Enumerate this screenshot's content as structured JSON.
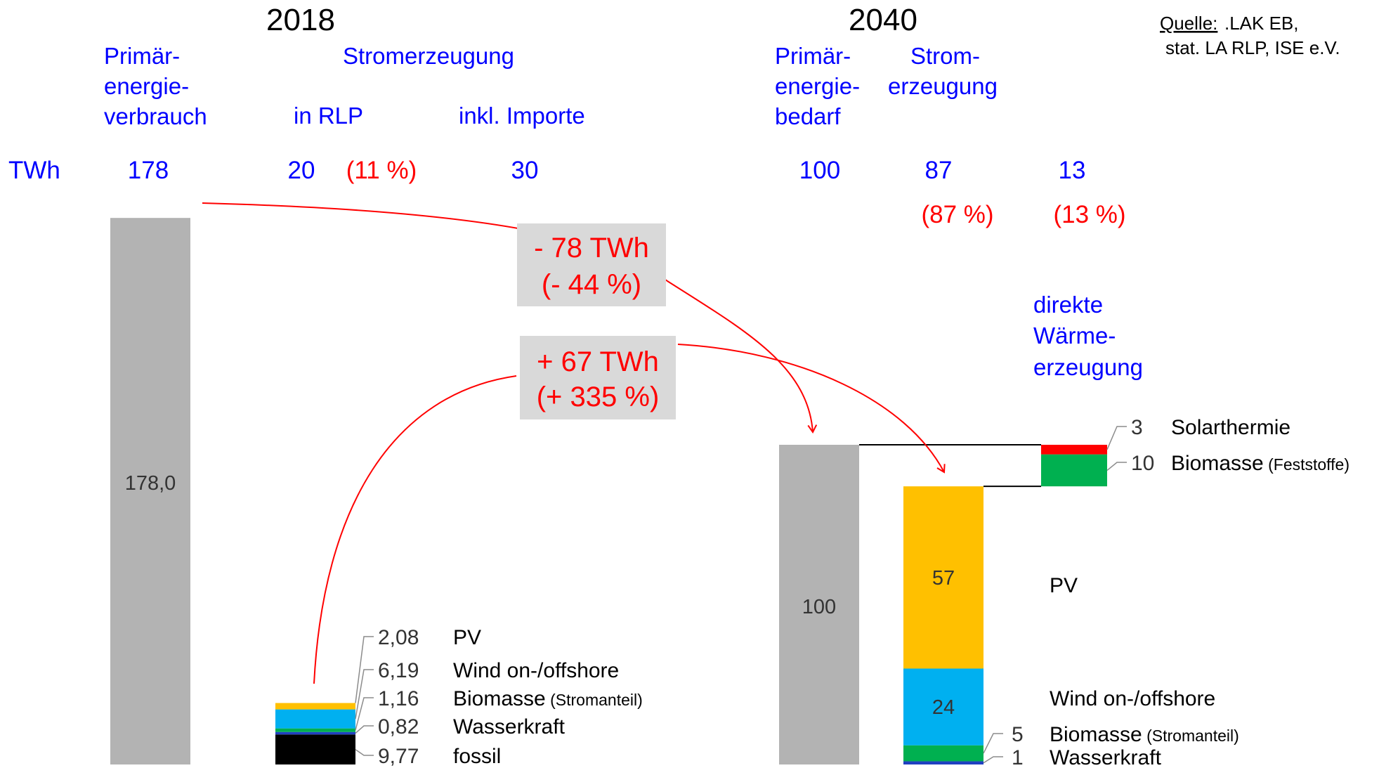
{
  "source": {
    "label": "Quelle:",
    "line1": " .LAK EB,",
    "line2": "stat. LA RLP, ISE e.V."
  },
  "colors": {
    "blue": "#0000ff",
    "red": "#ff0000",
    "gray": "#b3b3b3",
    "callout_bg": "#d9d9d9",
    "pv": "#ffc000",
    "wind": "#00b0f0",
    "biomass": "#00b050",
    "hydro": "#2040c0",
    "fossil": "#000000",
    "solarthermie": "#ff0000",
    "leader": "#8c8c8c"
  },
  "chart_data": {
    "type": "bar",
    "unit": "TWh",
    "unit_label": "TWh",
    "year_2018": {
      "year_label": "2018",
      "col_primary_label": [
        "Primär-",
        "energie-",
        "verbrauch"
      ],
      "stromerzeugung_label": "Stromerzeugung",
      "in_rlp_label": "in RLP",
      "imports_label": "inkl. Importe",
      "primary_value": "178",
      "in_rlp_value": "20",
      "in_rlp_share": "(11 %)",
      "imports_value": "30",
      "primary_bar": {
        "value": 178,
        "label": "178,0"
      },
      "electricity_stack": [
        {
          "name": "fossil",
          "value": 9.77,
          "label": "9,77",
          "color": "#000000"
        },
        {
          "name": "Wasserkraft",
          "value": 0.82,
          "label": "0,82",
          "color": "#2040c0"
        },
        {
          "name": "Biomasse",
          "suffix": " (Stromanteil)",
          "value": 1.16,
          "label": "1,16",
          "color": "#00b050"
        },
        {
          "name": "Wind on-/offshore",
          "value": 6.19,
          "label": "6,19",
          "color": "#00b0f0"
        },
        {
          "name": "PV",
          "value": 2.08,
          "label": "2,08",
          "color": "#ffc000"
        }
      ]
    },
    "year_2040": {
      "year_label": "2040",
      "col_primary_label": [
        "Primär-",
        "energie-",
        "bedarf"
      ],
      "col_strom_label": [
        "Strom-",
        "erzeugung"
      ],
      "heat_label": [
        "direkte",
        "Wärme-",
        "erzeugung"
      ],
      "primary_value": "100",
      "strom_value": "87",
      "strom_share": "(87 %)",
      "heat_value": "13",
      "heat_share": "(13 %)",
      "primary_bar": {
        "value": 100,
        "label": "100"
      },
      "electricity_stack": [
        {
          "name": "Wasserkraft",
          "value": 1,
          "label": "1",
          "color": "#2040c0"
        },
        {
          "name": "Biomasse",
          "suffix": " (Stromanteil)",
          "value": 5,
          "label": "5",
          "color": "#00b050"
        },
        {
          "name": "Wind on-/offshore",
          "value": 24,
          "label": "24",
          "color": "#00b0f0"
        },
        {
          "name": "PV",
          "value": 57,
          "label": "57",
          "color": "#ffc000"
        }
      ],
      "heat_stack": [
        {
          "name": "Biomasse",
          "suffix": " (Feststoffe)",
          "value": 10,
          "label": "10",
          "color": "#00b050"
        },
        {
          "name": "Solarthermie",
          "value": 3,
          "label": "3",
          "color": "#ff0000"
        }
      ]
    },
    "changes": [
      {
        "line1": "- 78 TWh",
        "line2": "(- 44 %)"
      },
      {
        "line1": "+ 67 TWh",
        "line2": "(+ 335 %)"
      }
    ]
  }
}
